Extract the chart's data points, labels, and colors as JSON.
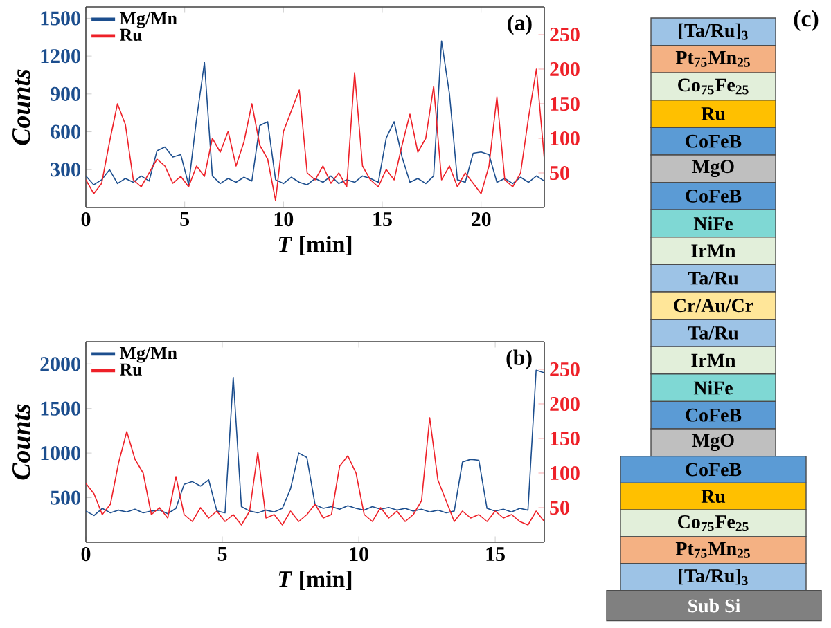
{
  "chart_data": [
    {
      "type": "line",
      "title": "(a)",
      "xlabel": "*T* [min]",
      "ylabel": "Counts",
      "legend": "top left",
      "xlim": [
        0,
        23.2
      ],
      "xticks": [
        0,
        5,
        10,
        15,
        20
      ],
      "ylim": [
        0,
        1590
      ],
      "yticks": [
        300,
        600,
        900,
        1200,
        1500
      ],
      "y2lim": [
        0,
        290
      ],
      "y2ticks": [
        50,
        100,
        150,
        200,
        250
      ],
      "x": [
        0,
        0.4,
        0.8,
        1.2,
        1.6,
        2.0,
        2.4,
        2.8,
        3.2,
        3.6,
        4.0,
        4.4,
        4.8,
        5.2,
        5.6,
        6.0,
        6.4,
        6.8,
        7.2,
        7.6,
        8.0,
        8.4,
        8.8,
        9.2,
        9.6,
        10.0,
        10.4,
        10.8,
        11.2,
        11.6,
        12.0,
        12.4,
        12.8,
        13.2,
        13.6,
        14.0,
        14.4,
        14.8,
        15.2,
        15.6,
        16.0,
        16.4,
        16.8,
        17.2,
        17.6,
        18.0,
        18.4,
        18.8,
        19.2,
        19.6,
        20.0,
        20.4,
        20.8,
        21.2,
        21.6,
        22.0,
        22.4,
        22.8,
        23.2
      ],
      "series": [
        {
          "name": "Mg/Mn",
          "color": "#1c4e8e",
          "values": [
            250,
            180,
            220,
            300,
            190,
            230,
            200,
            250,
            210,
            450,
            480,
            400,
            420,
            180,
            700,
            1150,
            250,
            190,
            230,
            200,
            240,
            210,
            650,
            680,
            220,
            190,
            240,
            200,
            180,
            230,
            200,
            250,
            190,
            220,
            200,
            250,
            230,
            200,
            550,
            680,
            400,
            200,
            230,
            190,
            250,
            1320,
            900,
            220,
            200,
            430,
            440,
            420,
            200,
            230,
            190,
            240,
            200,
            250,
            210
          ]
        },
        {
          "name": "Ru",
          "color": "#ee2028",
          "axis": "y2",
          "values": [
            40,
            20,
            35,
            95,
            150,
            120,
            40,
            30,
            50,
            70,
            60,
            35,
            45,
            30,
            60,
            45,
            100,
            80,
            110,
            60,
            95,
            150,
            90,
            70,
            10,
            110,
            140,
            170,
            50,
            40,
            60,
            35,
            50,
            30,
            195,
            60,
            40,
            30,
            55,
            40,
            90,
            135,
            80,
            100,
            175,
            40,
            60,
            30,
            50,
            35,
            20,
            60,
            160,
            40,
            30,
            50,
            130,
            200,
            70
          ]
        }
      ]
    },
    {
      "type": "line",
      "title": "(b)",
      "xlabel": "*T* [min]",
      "ylabel": "Counts",
      "legend": "top left",
      "xlim": [
        0,
        16.8
      ],
      "xticks": [
        0,
        5,
        10,
        15
      ],
      "ylim": [
        0,
        2250
      ],
      "yticks": [
        500,
        1000,
        1500,
        2000
      ],
      "y2lim": [
        0,
        290
      ],
      "y2ticks": [
        50,
        100,
        150,
        200,
        250
      ],
      "x": [
        0,
        0.3,
        0.6,
        0.9,
        1.2,
        1.5,
        1.8,
        2.1,
        2.4,
        2.7,
        3.0,
        3.3,
        3.6,
        3.9,
        4.2,
        4.5,
        4.8,
        5.1,
        5.4,
        5.7,
        6.0,
        6.3,
        6.6,
        6.9,
        7.2,
        7.5,
        7.8,
        8.1,
        8.4,
        8.7,
        9.0,
        9.3,
        9.6,
        9.9,
        10.2,
        10.5,
        10.8,
        11.1,
        11.4,
        11.7,
        12.0,
        12.3,
        12.6,
        12.9,
        13.2,
        13.5,
        13.8,
        14.1,
        14.4,
        14.7,
        15.0,
        15.3,
        15.6,
        15.9,
        16.2,
        16.5,
        16.8
      ],
      "series": [
        {
          "name": "Mg/Mn",
          "color": "#1c4e8e",
          "values": [
            350,
            300,
            380,
            330,
            360,
            340,
            370,
            330,
            350,
            360,
            320,
            380,
            650,
            680,
            630,
            700,
            350,
            330,
            1850,
            400,
            350,
            330,
            360,
            340,
            380,
            600,
            1000,
            950,
            420,
            380,
            400,
            370,
            410,
            380,
            360,
            400,
            370,
            390,
            360,
            380,
            350,
            370,
            340,
            360,
            330,
            350,
            900,
            930,
            920,
            380,
            350,
            370,
            340,
            380,
            360,
            1930,
            1900
          ]
        },
        {
          "name": "Ru",
          "color": "#ee2028",
          "axis": "y2",
          "values": [
            85,
            70,
            40,
            55,
            115,
            160,
            120,
            100,
            40,
            50,
            35,
            95,
            40,
            30,
            50,
            35,
            45,
            30,
            40,
            25,
            45,
            130,
            35,
            40,
            25,
            45,
            30,
            40,
            55,
            35,
            40,
            110,
            125,
            100,
            40,
            30,
            50,
            35,
            45,
            30,
            40,
            60,
            180,
            90,
            60,
            30,
            45,
            35,
            40,
            30,
            45,
            35,
            40,
            30,
            25,
            45,
            30
          ]
        }
      ]
    },
    {
      "type": "other",
      "title": "(c)",
      "categories": [
        "[Ta/Ru]$_{3}$",
        "Pt$_{75}$Mn$_{25}$",
        "Co$_{75}$Fe$_{25}$",
        "Ru",
        "CoFeB",
        "MgO",
        "CoFeB",
        "NiFe",
        "IrMn",
        "Ta/Ru",
        "Cr/Au/Cr",
        "Ta/Ru",
        "IrMn",
        "NiFe",
        "CoFeB",
        "MgO",
        "CoFeB",
        "Ru",
        "Co$_{75}$Fe$_{25}$",
        "Pt$_{75}$Mn$_{25}$",
        "[Ta/Ru]$_{3}$",
        "Sub Si"
      ],
      "colors": [
        "#9dc3e6",
        "#f4b183",
        "#e2efda",
        "#ffc000",
        "#5b9bd5",
        "#bfbfbf",
        "#5b9bd5",
        "#7fd8d4",
        "#e2efda",
        "#9dc3e6",
        "#ffe699",
        "#9dc3e6",
        "#e2efda",
        "#7fd8d4",
        "#5b9bd5",
        "#bfbfbf",
        "#5b9bd5",
        "#ffc000",
        "#e2efda",
        "#f4b183",
        "#9dc3e6",
        "#808080"
      ]
    }
  ]
}
